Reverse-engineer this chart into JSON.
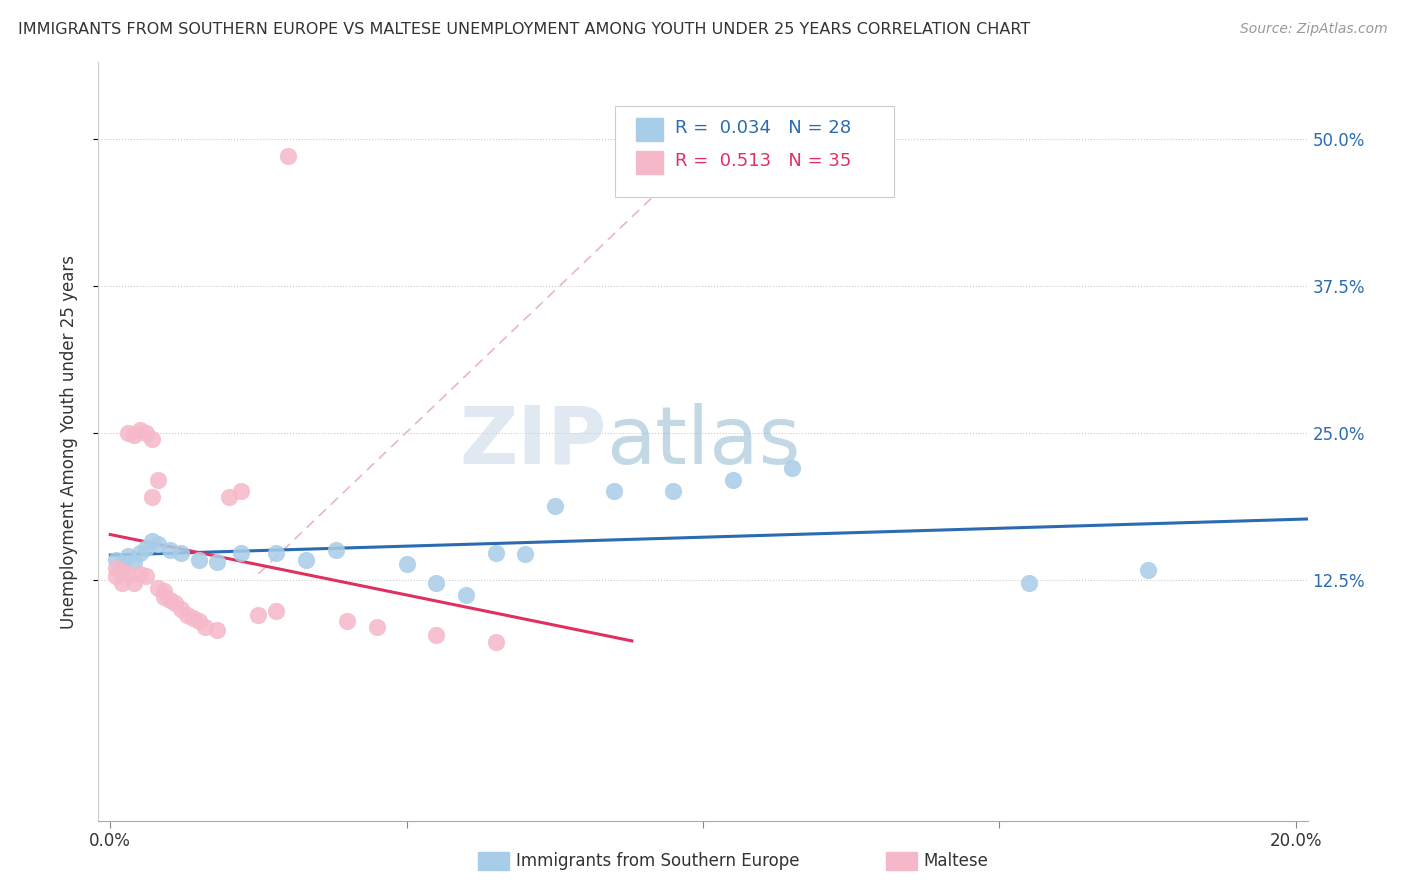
{
  "title": "IMMIGRANTS FROM SOUTHERN EUROPE VS MALTESE UNEMPLOYMENT AMONG YOUTH UNDER 25 YEARS CORRELATION CHART",
  "source": "Source: ZipAtlas.com",
  "ylabel": "Unemployment Among Youth under 25 years",
  "xlim": [
    -0.002,
    0.202
  ],
  "ylim": [
    -0.08,
    0.565
  ],
  "ytick_vals": [
    0.125,
    0.25,
    0.375,
    0.5
  ],
  "ytick_labels": [
    "12.5%",
    "25.0%",
    "37.5%",
    "50.0%"
  ],
  "xtick_vals": [
    0.0,
    0.05,
    0.1,
    0.15,
    0.2
  ],
  "xtick_labels": [
    "0.0%",
    "",
    "",
    "",
    "20.0%"
  ],
  "blue_color": "#a8cde8",
  "pink_color": "#f5b8c8",
  "blue_line_color": "#2b6cb0",
  "pink_line_color": "#e03060",
  "dash_line_color": "#e8b8c0",
  "legend_text_blue": "R =  0.034   N = 28",
  "legend_text_pink": "R =  0.513   N = 35",
  "watermark_zip": "ZIP",
  "watermark_atlas": "atlas",
  "blue_x": [
    0.001,
    0.002,
    0.003,
    0.004,
    0.005,
    0.006,
    0.007,
    0.008,
    0.01,
    0.012,
    0.015,
    0.018,
    0.022,
    0.028,
    0.033,
    0.038,
    0.05,
    0.055,
    0.06,
    0.065,
    0.07,
    0.075,
    0.085,
    0.095,
    0.105,
    0.115,
    0.155,
    0.175
  ],
  "blue_y": [
    0.142,
    0.138,
    0.145,
    0.14,
    0.148,
    0.152,
    0.158,
    0.155,
    0.15,
    0.148,
    0.142,
    0.14,
    0.148,
    0.148,
    0.142,
    0.15,
    0.138,
    0.122,
    0.112,
    0.148,
    0.147,
    0.188,
    0.2,
    0.2,
    0.21,
    0.22,
    0.122,
    0.133
  ],
  "pink_x": [
    0.001,
    0.001,
    0.002,
    0.002,
    0.003,
    0.003,
    0.004,
    0.004,
    0.005,
    0.005,
    0.006,
    0.006,
    0.007,
    0.007,
    0.008,
    0.008,
    0.009,
    0.009,
    0.01,
    0.011,
    0.012,
    0.013,
    0.014,
    0.015,
    0.016,
    0.018,
    0.02,
    0.022,
    0.025,
    0.028,
    0.03,
    0.04,
    0.045,
    0.055,
    0.065
  ],
  "pink_y": [
    0.135,
    0.128,
    0.132,
    0.122,
    0.25,
    0.13,
    0.248,
    0.122,
    0.252,
    0.13,
    0.25,
    0.128,
    0.245,
    0.195,
    0.21,
    0.118,
    0.115,
    0.11,
    0.108,
    0.105,
    0.1,
    0.095,
    0.092,
    0.09,
    0.085,
    0.082,
    0.195,
    0.2,
    0.095,
    0.098,
    0.485,
    0.09,
    0.085,
    0.078,
    0.072
  ]
}
